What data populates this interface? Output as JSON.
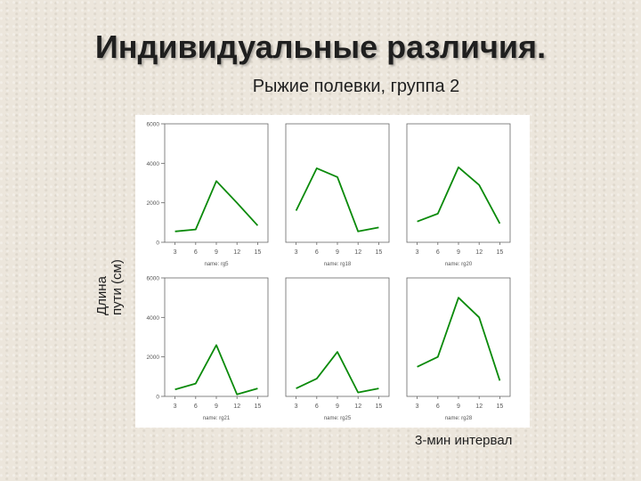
{
  "slide": {
    "title": "Индивидуальные различия.",
    "subtitle": "Рыжие полевки, группа 2",
    "ylabel_line1": "Длина",
    "ylabel_line2": "пути (см)",
    "xcaption": "3-мин интервал"
  },
  "colors": {
    "line": "#0a8a0a",
    "axis": "#666666",
    "tick_text": "#555555"
  },
  "chart_data": {
    "type": "line",
    "layout": "2x3 small multiples",
    "x_ticks": [
      3,
      6,
      9,
      12,
      15
    ],
    "y_ticks": [
      0,
      2000,
      4000,
      6000
    ],
    "ylim": [
      0,
      6000
    ],
    "grid": false,
    "panels": [
      {
        "name": "name: rg5",
        "x": [
          3,
          6,
          9,
          12,
          15
        ],
        "y": [
          550,
          650,
          3100,
          2000,
          850
        ]
      },
      {
        "name": "name: rg18",
        "x": [
          3,
          6,
          9,
          12,
          15
        ],
        "y": [
          1600,
          3750,
          3300,
          550,
          750
        ]
      },
      {
        "name": "name: rg20",
        "x": [
          3,
          6,
          9,
          12,
          15
        ],
        "y": [
          1050,
          1450,
          3800,
          2900,
          950
        ]
      },
      {
        "name": "name: rg21",
        "x": [
          3,
          6,
          9,
          12,
          15
        ],
        "y": [
          350,
          650,
          2600,
          100,
          400
        ]
      },
      {
        "name": "name: rg25",
        "x": [
          3,
          6,
          9,
          12,
          15
        ],
        "y": [
          400,
          900,
          2250,
          200,
          400
        ]
      },
      {
        "name": "name: rg28",
        "x": [
          3,
          6,
          9,
          12,
          15
        ],
        "y": [
          1500,
          2000,
          5000,
          4000,
          800
        ]
      }
    ]
  }
}
